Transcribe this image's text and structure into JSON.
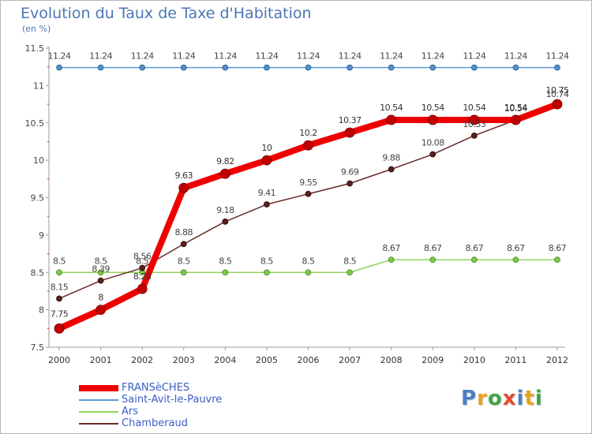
{
  "title": "Evolution du Taux de Taxe d'Habitation",
  "subtitle": "(en %)",
  "logo": {
    "text": "Proxiti",
    "letters": [
      "P",
      "r",
      "o",
      "x",
      "i",
      "t",
      "i"
    ],
    "colors": [
      "#4b7fc4",
      "#e8a21c",
      "#3fa548",
      "#e24a2d",
      "#4b7fc4",
      "#e8a21c",
      "#3fa548"
    ]
  },
  "chart_data": {
    "type": "line",
    "title": "Evolution du Taux de Taxe d'Habitation",
    "ylabel": "(en %)",
    "xlabel": "",
    "x": [
      "2000",
      "2001",
      "2002",
      "2003",
      "2004",
      "2005",
      "2006",
      "2007",
      "2008",
      "2009",
      "2010",
      "2011",
      "2012"
    ],
    "ylim": [
      7.5,
      11.5
    ],
    "yticks": [
      "7.5",
      "8",
      "8.5",
      "9",
      "9.5",
      "10",
      "10.5",
      "11",
      "11.5"
    ],
    "grid": false,
    "legend_position": "bottom-left",
    "series": [
      {
        "name": "FRANSèCHES",
        "color": "#ee0000",
        "values": [
          7.75,
          8,
          8.28,
          9.63,
          9.82,
          10,
          10.2,
          10.37,
          10.54,
          10.54,
          10.54,
          10.54,
          10.75
        ],
        "labels": [
          "7.75",
          "8",
          "8.28",
          "9.63",
          "9.82",
          "10",
          "10.2",
          "10.37",
          "10.54",
          "10.54",
          "10.54",
          "10.54",
          "10.75"
        ]
      },
      {
        "name": "Saint-Avit-le-Pauvre",
        "color": "#5b9bd5",
        "values": [
          11.24,
          11.24,
          11.24,
          11.24,
          11.24,
          11.24,
          11.24,
          11.24,
          11.24,
          11.24,
          11.24,
          11.24,
          11.24
        ],
        "labels": [
          "11.24",
          "11.24",
          "11.24",
          "11.24",
          "11.24",
          "11.24",
          "11.24",
          "11.24",
          "11.24",
          "11.24",
          "11.24",
          "11.24",
          "11.24"
        ]
      },
      {
        "name": "Ars",
        "color": "#8ed45a",
        "values": [
          8.5,
          8.5,
          8.5,
          8.5,
          8.5,
          8.5,
          8.5,
          8.5,
          8.67,
          8.67,
          8.67,
          8.67,
          8.67
        ],
        "labels": [
          "8.5",
          "8.5",
          "8.5",
          "8.5",
          "8.5",
          "8.5",
          "8.5",
          "8.5",
          "8.67",
          "8.67",
          "8.67",
          "8.67",
          "8.67"
        ]
      },
      {
        "name": "Chamberaud",
        "color": "#6b2b2b",
        "values": [
          8.15,
          8.39,
          8.56,
          8.88,
          9.18,
          9.41,
          9.55,
          9.69,
          9.88,
          10.08,
          10.33,
          10.54,
          10.74
        ],
        "labels": [
          "8.15",
          "8.39",
          "8.56",
          "8.88",
          "9.18",
          "9.41",
          "9.55",
          "9.69",
          "9.88",
          "10.08",
          "10.33",
          "10.54",
          "10.74"
        ]
      }
    ]
  }
}
